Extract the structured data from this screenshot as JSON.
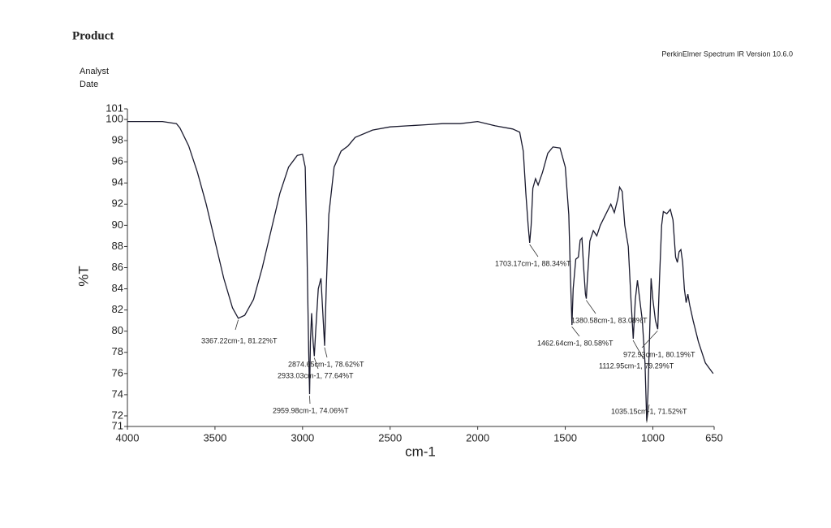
{
  "chart_data": {
    "type": "line",
    "title": "Product",
    "subtitle": "PerkinElmer Spectrum IR Version 10.6.0",
    "fields": [
      "Analyst",
      "Date"
    ],
    "x_label": "cm-1",
    "y_label": "%T",
    "xlim": [
      4000,
      650
    ],
    "ylim": [
      71,
      101
    ],
    "xticks": [
      4000,
      3500,
      3000,
      2500,
      2000,
      1500,
      1000,
      650
    ],
    "yticks": [
      71,
      72,
      74,
      76,
      78,
      80,
      82,
      84,
      86,
      88,
      90,
      92,
      94,
      96,
      98,
      100,
      101
    ],
    "color": "#1a1a2e",
    "x": [
      4000,
      3800,
      3720,
      3700,
      3650,
      3600,
      3550,
      3500,
      3450,
      3400,
      3367,
      3330,
      3280,
      3230,
      3180,
      3130,
      3080,
      3030,
      3000,
      2985,
      2975,
      2965,
      2960,
      2955,
      2948,
      2940,
      2933,
      2925,
      2910,
      2895,
      2885,
      2874,
      2865,
      2850,
      2820,
      2780,
      2740,
      2700,
      2600,
      2500,
      2400,
      2300,
      2200,
      2100,
      2000,
      1900,
      1800,
      1760,
      1740,
      1725,
      1712,
      1703,
      1695,
      1685,
      1670,
      1655,
      1630,
      1600,
      1570,
      1530,
      1500,
      1480,
      1470,
      1462,
      1455,
      1440,
      1425,
      1415,
      1405,
      1395,
      1385,
      1380,
      1375,
      1360,
      1340,
      1320,
      1300,
      1270,
      1240,
      1220,
      1200,
      1190,
      1175,
      1160,
      1140,
      1125,
      1112,
      1100,
      1088,
      1075,
      1060,
      1045,
      1035,
      1028,
      1018,
      1010,
      1000,
      985,
      972,
      962,
      950,
      940,
      920,
      900,
      885,
      870,
      860,
      850,
      840,
      830,
      820,
      810,
      800,
      790,
      770,
      740,
      700,
      660,
      655
    ],
    "values": [
      99.8,
      99.8,
      99.6,
      99.2,
      97.5,
      95,
      92,
      88.5,
      85,
      82.2,
      81.22,
      81.5,
      83,
      86,
      89.5,
      93,
      95.5,
      96.6,
      96.7,
      95.5,
      88,
      78,
      74.06,
      79,
      81.7,
      79,
      77.64,
      80,
      84,
      85,
      82,
      78.62,
      84,
      91,
      95.5,
      97,
      97.5,
      98.3,
      99,
      99.3,
      99.4,
      99.5,
      99.6,
      99.6,
      99.8,
      99.4,
      99.1,
      98.8,
      97,
      93,
      90,
      88.34,
      90,
      93.5,
      94.4,
      93.8,
      95,
      96.8,
      97.4,
      97.3,
      95.5,
      91,
      85,
      80.58,
      84,
      86.8,
      87,
      88.6,
      88.8,
      86,
      83.5,
      83.08,
      84.5,
      88.5,
      89.5,
      89,
      90,
      91,
      92,
      91.2,
      92.5,
      93.6,
      93.2,
      90,
      88,
      83,
      79.29,
      83,
      84.8,
      83,
      81,
      77,
      71.52,
      74,
      80,
      85,
      83,
      81,
      80.19,
      85,
      90,
      91.3,
      91.1,
      91.5,
      90.5,
      87,
      86.5,
      87.5,
      87.7,
      86.5,
      84,
      82.7,
      83.5,
      82.5,
      81,
      79,
      77,
      76.1,
      76
    ],
    "annotations": [
      {
        "label": "3367.22cm-1, 81.22%T",
        "x": 3367.22,
        "y": 81.22
      },
      {
        "label": "2874.65cm-1, 78.62%T",
        "x": 2874.65,
        "y": 78.62
      },
      {
        "label": "2933.03cm-1, 77.64%T",
        "x": 2933.03,
        "y": 77.64
      },
      {
        "label": "2959.98cm-1, 74.06%T",
        "x": 2959.98,
        "y": 74.06
      },
      {
        "label": "1703.17cm-1, 88.34%T",
        "x": 1703.17,
        "y": 88.34
      },
      {
        "label": "1380.58cm-1, 83.08%T",
        "x": 1380.58,
        "y": 83.08
      },
      {
        "label": "1462.64cm-1, 80.58%T",
        "x": 1462.64,
        "y": 80.58
      },
      {
        "label": "972.93cm-1, 80.19%T",
        "x": 972.93,
        "y": 80.19
      },
      {
        "label": "1112.95cm-1, 79.29%T",
        "x": 1112.95,
        "y": 79.29
      },
      {
        "label": "1035.15cm-1, 71.52%T",
        "x": 1035.15,
        "y": 71.52
      }
    ]
  }
}
